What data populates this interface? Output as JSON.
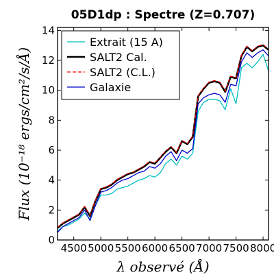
{
  "chart_data": {
    "type": "line",
    "title": "05D1dp : Spectre (Z=0.707)",
    "xlabel": "λ observé (Å)",
    "ylabel": "Flux (10⁻¹⁸ ergs/cm²/s/Å)",
    "xlim": [
      4200,
      8100
    ],
    "ylim": [
      0,
      14.2
    ],
    "xticks": [
      4500,
      5000,
      5500,
      6000,
      6500,
      7000,
      7500,
      8000
    ],
    "yticks": [
      0,
      2,
      4,
      6,
      8,
      10,
      12,
      14
    ],
    "grid": false,
    "legend_position": "upper-left",
    "x": [
      4200,
      4300,
      4400,
      4500,
      4600,
      4700,
      4800,
      4900,
      5000,
      5100,
      5200,
      5300,
      5400,
      5500,
      5600,
      5700,
      5800,
      5900,
      6000,
      6100,
      6200,
      6300,
      6400,
      6500,
      6600,
      6700,
      6800,
      6900,
      7000,
      7100,
      7200,
      7300,
      7400,
      7500,
      7600,
      7700,
      7800,
      7900,
      8000,
      8100
    ],
    "series": [
      {
        "name": "Extrait (15 A)",
        "color": "#00bfbf",
        "width": 1.3,
        "values": [
          0.6,
          0.9,
          1.0,
          1.2,
          1.4,
          1.8,
          1.4,
          2.3,
          3.0,
          3.0,
          3.1,
          3.4,
          3.5,
          3.6,
          3.8,
          4.0,
          4.1,
          4.3,
          4.2,
          4.5,
          5.1,
          5.4,
          5.0,
          5.6,
          5.4,
          5.8,
          8.6,
          9.2,
          9.4,
          9.4,
          9.3,
          8.7,
          10.1,
          9.1,
          11.5,
          11.8,
          11.5,
          11.9,
          12.4,
          11.3
        ]
      },
      {
        "name": "SALT2 Cal.",
        "color": "#000000",
        "width": 2.6,
        "values": [
          0.8,
          1.1,
          1.3,
          1.5,
          1.7,
          2.2,
          1.6,
          2.6,
          3.4,
          3.5,
          3.7,
          4.0,
          4.2,
          4.4,
          4.5,
          4.7,
          4.9,
          5.2,
          5.1,
          5.5,
          5.9,
          6.2,
          5.8,
          6.6,
          6.4,
          6.9,
          9.6,
          10.1,
          10.5,
          10.6,
          10.5,
          9.9,
          10.9,
          10.8,
          12.3,
          12.9,
          12.6,
          12.9,
          13.0,
          12.7
        ]
      },
      {
        "name": "SALT2 (C.L.)",
        "color": "#ff0000",
        "width": 1.2,
        "dashed": true,
        "values": [
          0.85,
          1.15,
          1.35,
          1.55,
          1.75,
          2.25,
          1.65,
          2.65,
          3.45,
          3.55,
          3.75,
          4.05,
          4.25,
          4.45,
          4.55,
          4.75,
          4.95,
          5.25,
          5.15,
          5.55,
          5.95,
          6.25,
          5.85,
          6.65,
          6.45,
          6.95,
          9.65,
          10.15,
          10.55,
          10.65,
          10.55,
          9.95,
          10.95,
          10.85,
          12.35,
          12.95,
          12.65,
          12.95,
          13.05,
          12.75
        ]
      },
      {
        "name": "Galaxie",
        "color": "#0000cc",
        "width": 1.3,
        "values": [
          0.5,
          0.9,
          1.1,
          1.3,
          1.5,
          2.0,
          1.3,
          2.3,
          3.2,
          3.3,
          3.5,
          3.8,
          4.0,
          4.1,
          4.3,
          4.5,
          4.6,
          4.9,
          4.8,
          5.1,
          5.6,
          5.9,
          5.3,
          6.0,
          5.8,
          6.1,
          9.1,
          9.5,
          9.7,
          9.8,
          9.7,
          9.2,
          10.4,
          10.3,
          11.9,
          12.5,
          12.2,
          12.5,
          12.7,
          12.3
        ]
      }
    ]
  }
}
